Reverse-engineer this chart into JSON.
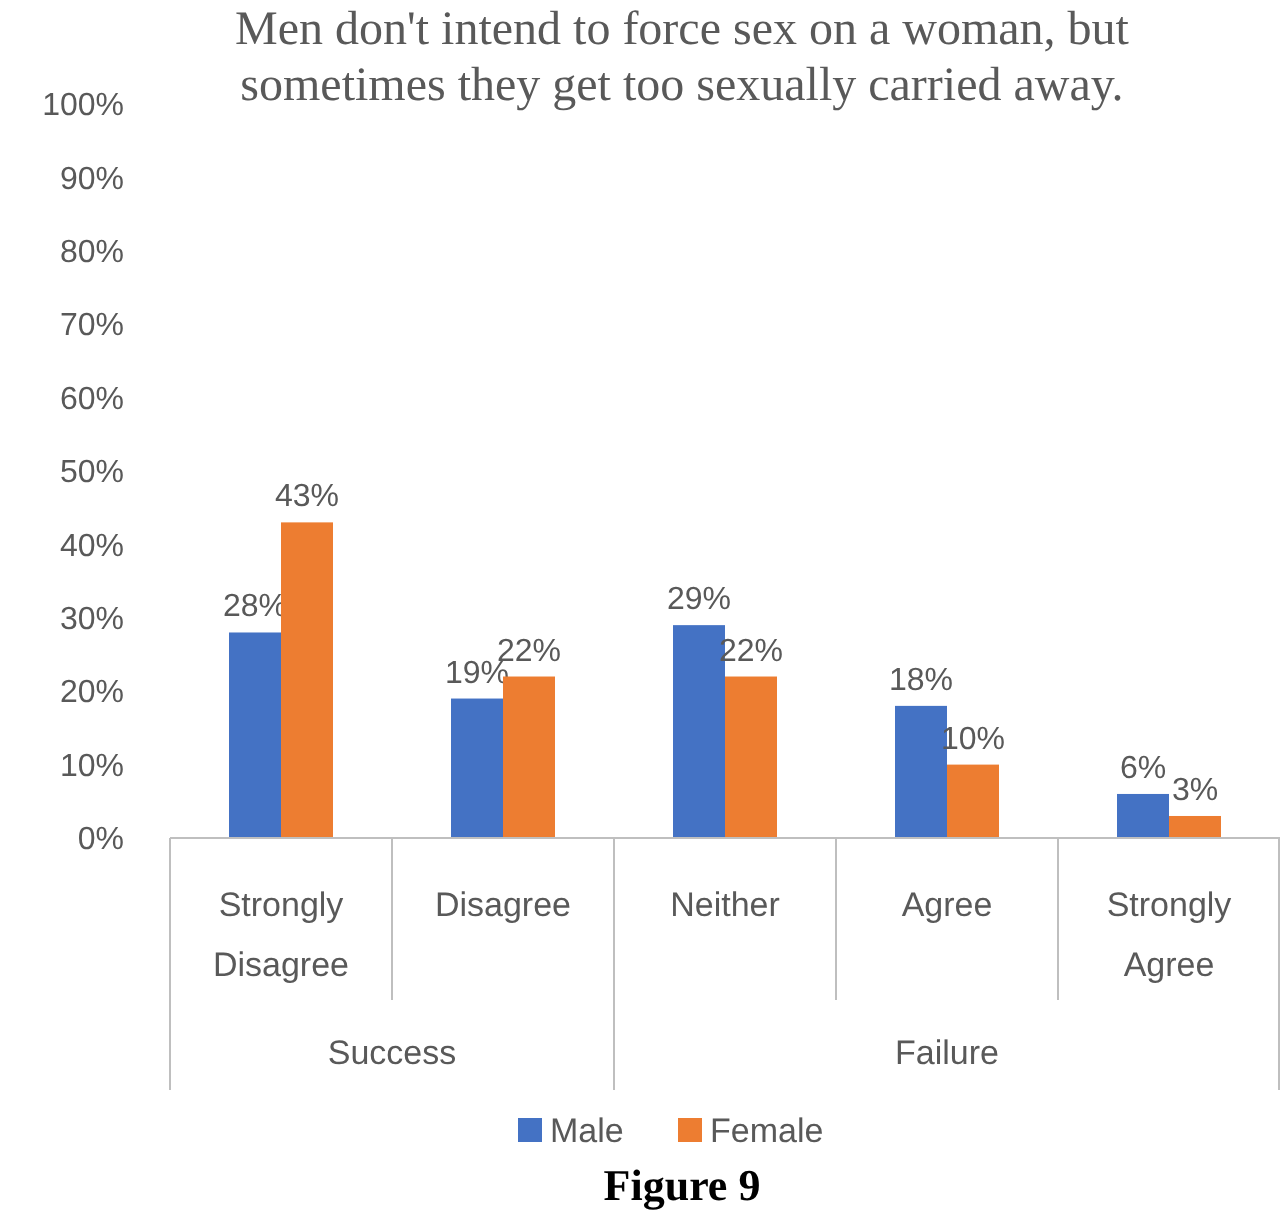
{
  "chart_data": {
    "type": "bar",
    "title": "Men don't intend to force sex on a woman, but sometimes they get too sexually carried away.",
    "categories": [
      "Strongly Disagree",
      "Disagree",
      "Neither",
      "Agree",
      "Strongly Agree"
    ],
    "series": [
      {
        "name": "Male",
        "color": "#4472c4",
        "values": [
          28,
          19,
          29,
          18,
          6
        ],
        "value_labels": [
          "28%",
          "19%",
          "29%",
          "18%",
          "6%"
        ]
      },
      {
        "name": "Female",
        "color": "#ed7d31",
        "values": [
          43,
          22,
          22,
          10,
          3
        ],
        "value_labels": [
          "43%",
          "22%",
          "22%",
          "10%",
          "3%"
        ]
      }
    ],
    "ylim": [
      0,
      100
    ],
    "yticks": [
      {
        "value": 0,
        "label": "0%"
      },
      {
        "value": 10,
        "label": "10%"
      },
      {
        "value": 20,
        "label": "20%"
      },
      {
        "value": 30,
        "label": "30%"
      },
      {
        "value": 40,
        "label": "40%"
      },
      {
        "value": 50,
        "label": "50%"
      },
      {
        "value": 60,
        "label": "60%"
      },
      {
        "value": 70,
        "label": "70%"
      },
      {
        "value": 80,
        "label": "80%"
      },
      {
        "value": 90,
        "label": "90%"
      },
      {
        "value": 100,
        "label": "100%"
      }
    ],
    "annotations": [
      "Success",
      "Failure",
      "Figure 9"
    ],
    "legend": "bottom",
    "grid": false
  }
}
